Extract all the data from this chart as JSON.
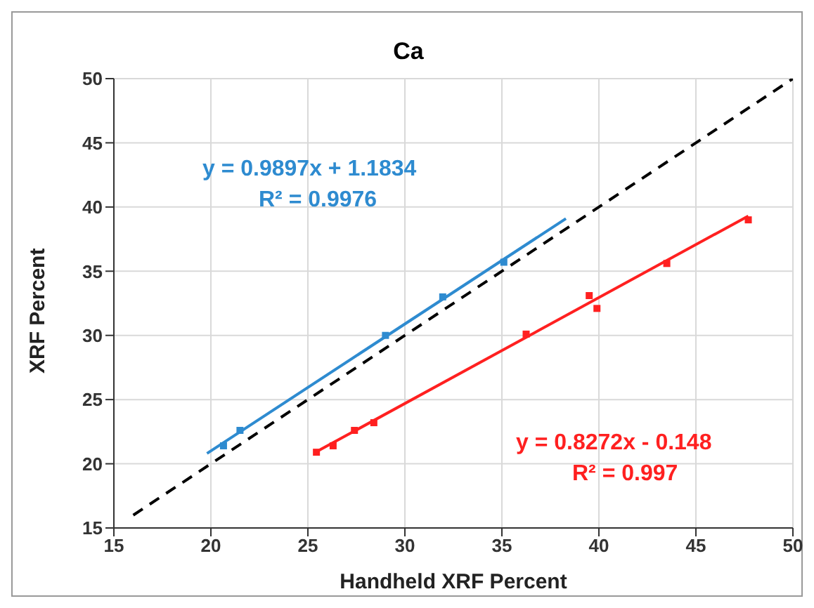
{
  "chart_data": {
    "type": "scatter",
    "title": "Ca",
    "xlabel": "Handheld XRF Percent",
    "ylabel": "XRF Percent",
    "xlim": [
      15,
      50
    ],
    "xticks": [
      15,
      20,
      25,
      30,
      35,
      40,
      45,
      50
    ],
    "ylim": [
      15,
      50
    ],
    "yticks": [
      15,
      20,
      25,
      30,
      35,
      40,
      45,
      50
    ],
    "grid": true,
    "legend": false,
    "marker": "square",
    "series": [
      {
        "color": "#2e8bd0",
        "x": [
          20.65,
          21.5,
          29.0,
          31.95,
          35.1
        ],
        "values": [
          21.4,
          22.6,
          30.0,
          33.0,
          35.7
        ]
      },
      {
        "color": "#ff2020",
        "x": [
          25.44,
          26.3,
          27.4,
          28.4,
          36.25,
          39.5,
          39.9,
          43.5,
          47.7
        ],
        "values": [
          20.9,
          21.4,
          22.6,
          23.2,
          30.1,
          33.1,
          32.1,
          35.6,
          39.0
        ]
      },
      {
        "type": "line",
        "color": "#2e8bd0",
        "marker": "none",
        "x": [
          19.8,
          38.3
        ],
        "values": [
          20.8,
          39.1
        ]
      },
      {
        "type": "line",
        "color": "#ff2020",
        "marker": "none",
        "x": [
          25.4,
          47.7
        ],
        "values": [
          20.9,
          39.3
        ]
      },
      {
        "type": "line",
        "color": "#000000",
        "marker": "none",
        "line_style": "dashed",
        "x": [
          16,
          50
        ],
        "values": [
          16,
          50
        ]
      }
    ],
    "annotations": [
      "y = 0.9897x + 1.1834",
      "R² = 0.9976",
      "y = 0.8272x - 0.148",
      "R² = 0.997"
    ]
  }
}
